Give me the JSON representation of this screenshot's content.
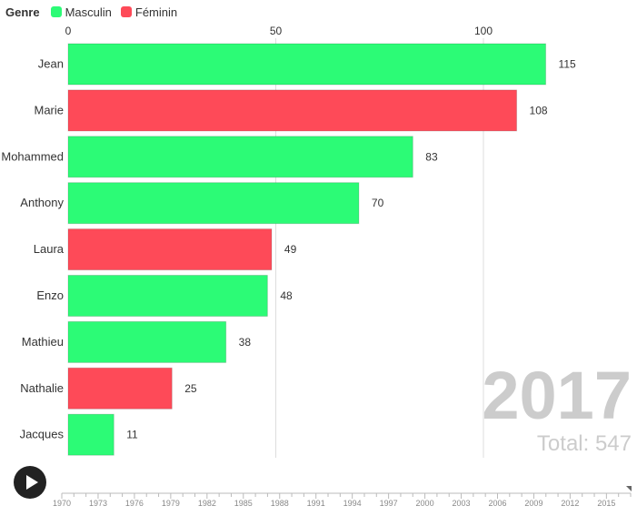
{
  "legend": {
    "title": "Genre",
    "items": [
      {
        "label": "Masculin",
        "color": "#2cfb76"
      },
      {
        "label": "Féminin",
        "color": "#fe4a58"
      }
    ]
  },
  "chart_data": {
    "type": "bar",
    "orientation": "horizontal",
    "categories": [
      "Jean",
      "Marie",
      "Mohammed",
      "Anthony",
      "Laura",
      "Enzo",
      "Mathieu",
      "Nathalie",
      "Jacques"
    ],
    "values": [
      115,
      108,
      83,
      70,
      49,
      48,
      38,
      25,
      11
    ],
    "genre": [
      "Masculin",
      "Féminin",
      "Masculin",
      "Masculin",
      "Féminin",
      "Masculin",
      "Masculin",
      "Féminin",
      "Masculin"
    ],
    "xlim": [
      0,
      115
    ],
    "xticks": [
      0,
      50,
      100
    ],
    "xaxis_position": "top",
    "grid": true,
    "legend_position": "top-left"
  },
  "overlay": {
    "year": "2017",
    "total": "Total: 547"
  },
  "timeline": {
    "play_icon": "play-icon",
    "labels": [
      "1970",
      "1973",
      "1976",
      "1979",
      "1982",
      "1985",
      "1988",
      "1991",
      "1994",
      "1997",
      "2000",
      "2003",
      "2006",
      "2009",
      "2012",
      "2015"
    ],
    "range": [
      1970,
      2017
    ],
    "current": 2017
  }
}
